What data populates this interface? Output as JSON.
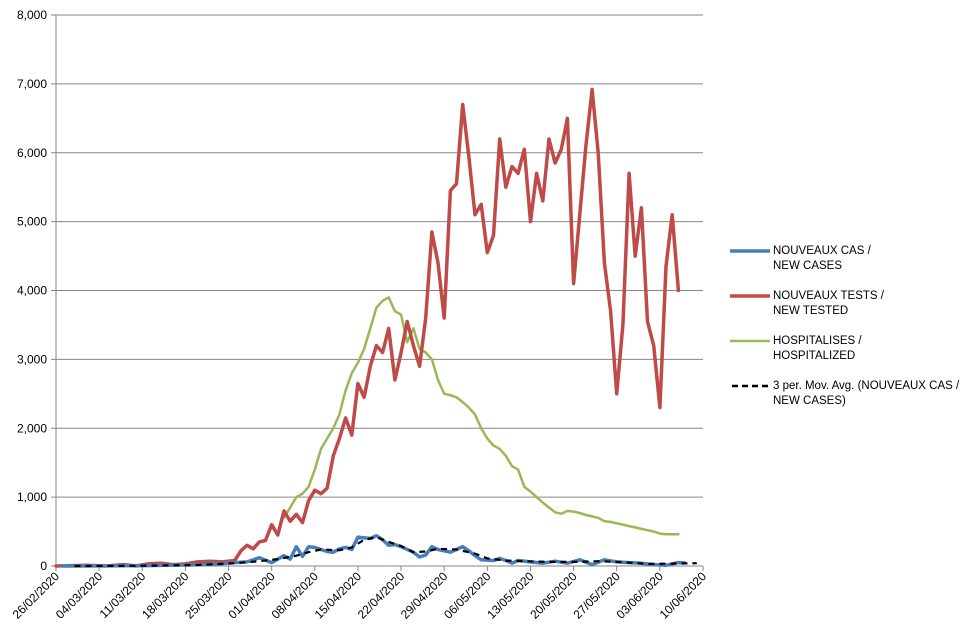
{
  "chart_data": {
    "type": "line",
    "x_tick_labels": [
      "26/02/2020",
      "04/03/2020",
      "11/03/2020",
      "18/03/2020",
      "25/03/2020",
      "01/04/2020",
      "08/04/2020",
      "15/04/2020",
      "22/04/2020",
      "29/04/2020",
      "06/05/2020",
      "13/05/2020",
      "20/05/2020",
      "27/05/2020",
      "03/06/2020",
      "10/06/2020"
    ],
    "y_tick_labels": [
      "0",
      "1,000",
      "2,000",
      "3,000",
      "4,000",
      "5,000",
      "6,000",
      "7,000",
      "8,000"
    ],
    "xlim": [
      "2020-02-26",
      "2020-06-10"
    ],
    "ylim": [
      0,
      8000
    ],
    "grid": "horizontal",
    "legend_position": "right",
    "series": [
      {
        "name": "NOUVEAUX CAS / NEW CASES",
        "color": "#4a7ebb",
        "style": "solid",
        "points": [
          [
            "2020-02-27",
            0
          ],
          [
            "2020-03-01",
            0
          ],
          [
            "2020-03-05",
            2
          ],
          [
            "2020-03-08",
            4
          ],
          [
            "2020-03-12",
            6
          ],
          [
            "2020-03-15",
            10
          ],
          [
            "2020-03-18",
            14
          ],
          [
            "2020-03-21",
            20
          ],
          [
            "2020-03-24",
            35
          ],
          [
            "2020-03-26",
            50
          ],
          [
            "2020-03-28",
            60
          ],
          [
            "2020-03-30",
            120
          ],
          [
            "2020-04-01",
            50
          ],
          [
            "2020-04-03",
            150
          ],
          [
            "2020-04-04",
            100
          ],
          [
            "2020-04-05",
            280
          ],
          [
            "2020-04-06",
            140
          ],
          [
            "2020-04-07",
            280
          ],
          [
            "2020-04-08",
            270
          ],
          [
            "2020-04-09",
            240
          ],
          [
            "2020-04-10",
            210
          ],
          [
            "2020-04-11",
            200
          ],
          [
            "2020-04-12",
            250
          ],
          [
            "2020-04-13",
            270
          ],
          [
            "2020-04-14",
            240
          ],
          [
            "2020-04-15",
            420
          ],
          [
            "2020-04-17",
            400
          ],
          [
            "2020-04-18",
            440
          ],
          [
            "2020-04-19",
            380
          ],
          [
            "2020-04-20",
            300
          ],
          [
            "2020-04-21",
            310
          ],
          [
            "2020-04-22",
            280
          ],
          [
            "2020-04-24",
            200
          ],
          [
            "2020-04-25",
            130
          ],
          [
            "2020-04-26",
            160
          ],
          [
            "2020-04-27",
            280
          ],
          [
            "2020-04-28",
            240
          ],
          [
            "2020-04-30",
            200
          ],
          [
            "2020-05-02",
            280
          ],
          [
            "2020-05-03",
            220
          ],
          [
            "2020-05-04",
            150
          ],
          [
            "2020-05-05",
            90
          ],
          [
            "2020-05-07",
            80
          ],
          [
            "2020-05-08",
            110
          ],
          [
            "2020-05-09",
            80
          ],
          [
            "2020-05-10",
            40
          ],
          [
            "2020-05-11",
            80
          ],
          [
            "2020-05-13",
            60
          ],
          [
            "2020-05-15",
            40
          ],
          [
            "2020-05-17",
            70
          ],
          [
            "2020-05-19",
            40
          ],
          [
            "2020-05-21",
            90
          ],
          [
            "2020-05-23",
            20
          ],
          [
            "2020-05-25",
            90
          ],
          [
            "2020-05-27",
            60
          ],
          [
            "2020-05-29",
            50
          ],
          [
            "2020-05-31",
            40
          ],
          [
            "2020-06-02",
            20
          ],
          [
            "2020-06-04",
            10
          ],
          [
            "2020-06-06",
            50
          ],
          [
            "2020-06-07",
            45
          ]
        ]
      },
      {
        "name": "NOUVEAUX TESTS / NEW TESTED",
        "color": "#be4b48",
        "style": "solid",
        "points": [
          [
            "2020-02-26",
            0
          ],
          [
            "2020-03-02",
            10
          ],
          [
            "2020-03-05",
            0
          ],
          [
            "2020-03-08",
            20
          ],
          [
            "2020-03-10",
            0
          ],
          [
            "2020-03-12",
            30
          ],
          [
            "2020-03-14",
            40
          ],
          [
            "2020-03-16",
            20
          ],
          [
            "2020-03-18",
            30
          ],
          [
            "2020-03-20",
            60
          ],
          [
            "2020-03-22",
            70
          ],
          [
            "2020-03-24",
            60
          ],
          [
            "2020-03-26",
            80
          ],
          [
            "2020-03-27",
            220
          ],
          [
            "2020-03-28",
            300
          ],
          [
            "2020-03-29",
            250
          ],
          [
            "2020-03-30",
            350
          ],
          [
            "2020-03-31",
            370
          ],
          [
            "2020-04-01",
            600
          ],
          [
            "2020-04-02",
            450
          ],
          [
            "2020-04-03",
            800
          ],
          [
            "2020-04-04",
            650
          ],
          [
            "2020-04-05",
            750
          ],
          [
            "2020-04-06",
            630
          ],
          [
            "2020-04-07",
            950
          ],
          [
            "2020-04-08",
            1100
          ],
          [
            "2020-04-09",
            1050
          ],
          [
            "2020-04-10",
            1130
          ],
          [
            "2020-04-11",
            1600
          ],
          [
            "2020-04-12",
            1850
          ],
          [
            "2020-04-13",
            2150
          ],
          [
            "2020-04-14",
            1900
          ],
          [
            "2020-04-15",
            2650
          ],
          [
            "2020-04-16",
            2450
          ],
          [
            "2020-04-17",
            2900
          ],
          [
            "2020-04-18",
            3200
          ],
          [
            "2020-04-19",
            3100
          ],
          [
            "2020-04-20",
            3450
          ],
          [
            "2020-04-21",
            2700
          ],
          [
            "2020-04-22",
            3100
          ],
          [
            "2020-04-23",
            3550
          ],
          [
            "2020-04-24",
            3200
          ],
          [
            "2020-04-25",
            2900
          ],
          [
            "2020-04-26",
            3600
          ],
          [
            "2020-04-27",
            4850
          ],
          [
            "2020-04-28",
            4400
          ],
          [
            "2020-04-29",
            3600
          ],
          [
            "2020-04-30",
            5450
          ],
          [
            "2020-05-01",
            5550
          ],
          [
            "2020-05-02",
            6700
          ],
          [
            "2020-05-03",
            5950
          ],
          [
            "2020-05-04",
            5100
          ],
          [
            "2020-05-05",
            5250
          ],
          [
            "2020-05-06",
            4550
          ],
          [
            "2020-05-07",
            4800
          ],
          [
            "2020-05-08",
            6200
          ],
          [
            "2020-05-09",
            5500
          ],
          [
            "2020-05-10",
            5800
          ],
          [
            "2020-05-11",
            5700
          ],
          [
            "2020-05-12",
            6050
          ],
          [
            "2020-05-13",
            5000
          ],
          [
            "2020-05-14",
            5700
          ],
          [
            "2020-05-15",
            5300
          ],
          [
            "2020-05-16",
            6200
          ],
          [
            "2020-05-17",
            5850
          ],
          [
            "2020-05-18",
            6050
          ],
          [
            "2020-05-19",
            6500
          ],
          [
            "2020-05-20",
            4100
          ],
          [
            "2020-05-22",
            6100
          ],
          [
            "2020-05-23",
            6920
          ],
          [
            "2020-05-24",
            6000
          ],
          [
            "2020-05-25",
            4400
          ],
          [
            "2020-05-26",
            3700
          ],
          [
            "2020-05-27",
            2500
          ],
          [
            "2020-05-28",
            3500
          ],
          [
            "2020-05-29",
            5700
          ],
          [
            "2020-05-30",
            4500
          ],
          [
            "2020-05-31",
            5200
          ],
          [
            "2020-06-01",
            3550
          ],
          [
            "2020-06-02",
            3200
          ],
          [
            "2020-06-03",
            2300
          ],
          [
            "2020-06-04",
            4350
          ],
          [
            "2020-06-05",
            5100
          ],
          [
            "2020-06-06",
            4000
          ]
        ]
      },
      {
        "name": "HOSPITALISES / HOSPITALIZED",
        "color": "#98b954",
        "style": "solid",
        "points": [
          [
            "2020-04-03",
            700
          ],
          [
            "2020-04-04",
            850
          ],
          [
            "2020-04-05",
            1000
          ],
          [
            "2020-04-06",
            1050
          ],
          [
            "2020-04-07",
            1150
          ],
          [
            "2020-04-08",
            1400
          ],
          [
            "2020-04-09",
            1700
          ],
          [
            "2020-04-10",
            1850
          ],
          [
            "2020-04-11",
            2000
          ],
          [
            "2020-04-12",
            2200
          ],
          [
            "2020-04-13",
            2550
          ],
          [
            "2020-04-14",
            2800
          ],
          [
            "2020-04-15",
            2950
          ],
          [
            "2020-04-16",
            3150
          ],
          [
            "2020-04-17",
            3450
          ],
          [
            "2020-04-18",
            3750
          ],
          [
            "2020-04-19",
            3850
          ],
          [
            "2020-04-20",
            3900
          ],
          [
            "2020-04-21",
            3700
          ],
          [
            "2020-04-22",
            3650
          ],
          [
            "2020-04-23",
            3250
          ],
          [
            "2020-04-24",
            3450
          ],
          [
            "2020-04-25",
            3150
          ],
          [
            "2020-04-26",
            3100
          ],
          [
            "2020-04-27",
            3000
          ],
          [
            "2020-04-28",
            2700
          ],
          [
            "2020-04-29",
            2500
          ],
          [
            "2020-04-30",
            2480
          ],
          [
            "2020-05-01",
            2450
          ],
          [
            "2020-05-02",
            2380
          ],
          [
            "2020-05-03",
            2300
          ],
          [
            "2020-05-04",
            2200
          ],
          [
            "2020-05-05",
            2000
          ],
          [
            "2020-05-06",
            1850
          ],
          [
            "2020-05-07",
            1750
          ],
          [
            "2020-05-08",
            1700
          ],
          [
            "2020-05-09",
            1600
          ],
          [
            "2020-05-10",
            1450
          ],
          [
            "2020-05-11",
            1400
          ],
          [
            "2020-05-12",
            1150
          ],
          [
            "2020-05-13",
            1080
          ],
          [
            "2020-05-14",
            1000
          ],
          [
            "2020-05-15",
            920
          ],
          [
            "2020-05-16",
            850
          ],
          [
            "2020-05-17",
            780
          ],
          [
            "2020-05-18",
            760
          ],
          [
            "2020-05-19",
            800
          ],
          [
            "2020-05-20",
            790
          ],
          [
            "2020-05-21",
            770
          ],
          [
            "2020-05-22",
            740
          ],
          [
            "2020-05-23",
            720
          ],
          [
            "2020-05-24",
            700
          ],
          [
            "2020-05-25",
            650
          ],
          [
            "2020-05-26",
            640
          ],
          [
            "2020-05-27",
            620
          ],
          [
            "2020-05-28",
            600
          ],
          [
            "2020-05-29",
            580
          ],
          [
            "2020-05-30",
            560
          ],
          [
            "2020-05-31",
            540
          ],
          [
            "2020-06-01",
            520
          ],
          [
            "2020-06-02",
            500
          ],
          [
            "2020-06-03",
            470
          ],
          [
            "2020-06-04",
            460
          ],
          [
            "2020-06-05",
            460
          ],
          [
            "2020-06-06",
            460
          ]
        ]
      },
      {
        "name": "3 per. Mov. Avg. (NOUVEAUX CAS / NEW CASES)",
        "color": "#000000",
        "style": "dashed",
        "points": [
          [
            "2020-02-29",
            0
          ],
          [
            "2020-03-10",
            3
          ],
          [
            "2020-03-20",
            15
          ],
          [
            "2020-03-26",
            40
          ],
          [
            "2020-03-30",
            70
          ],
          [
            "2020-04-02",
            100
          ],
          [
            "2020-04-05",
            150
          ],
          [
            "2020-04-07",
            200
          ],
          [
            "2020-04-09",
            240
          ],
          [
            "2020-04-12",
            230
          ],
          [
            "2020-04-14",
            270
          ],
          [
            "2020-04-16",
            380
          ],
          [
            "2020-04-18",
            420
          ],
          [
            "2020-04-20",
            350
          ],
          [
            "2020-04-22",
            290
          ],
          [
            "2020-04-24",
            200
          ],
          [
            "2020-04-26",
            210
          ],
          [
            "2020-04-28",
            250
          ],
          [
            "2020-05-01",
            240
          ],
          [
            "2020-05-04",
            180
          ],
          [
            "2020-05-06",
            110
          ],
          [
            "2020-05-09",
            80
          ],
          [
            "2020-05-12",
            70
          ],
          [
            "2020-05-16",
            60
          ],
          [
            "2020-05-20",
            60
          ],
          [
            "2020-05-24",
            70
          ],
          [
            "2020-05-28",
            55
          ],
          [
            "2020-06-01",
            30
          ],
          [
            "2020-06-05",
            35
          ],
          [
            "2020-06-09",
            40
          ]
        ]
      }
    ]
  },
  "legend": {
    "items": [
      {
        "text_1": "NOUVEAUX CAS /",
        "text_2": "NEW CASES",
        "color": "#4a7ebb",
        "style": "solid"
      },
      {
        "text_1": "NOUVEAUX TESTS /",
        "text_2": "NEW TESTED",
        "color": "#be4b48",
        "style": "solid"
      },
      {
        "text_1": "HOSPITALISES /",
        "text_2": "HOSPITALIZED",
        "color": "#98b954",
        "style": "solid"
      },
      {
        "text_1": "3 per. Mov. Avg. (NOUVEAUX CAS /",
        "text_2": "NEW CASES)",
        "color": "#000000",
        "style": "dashed"
      }
    ]
  }
}
